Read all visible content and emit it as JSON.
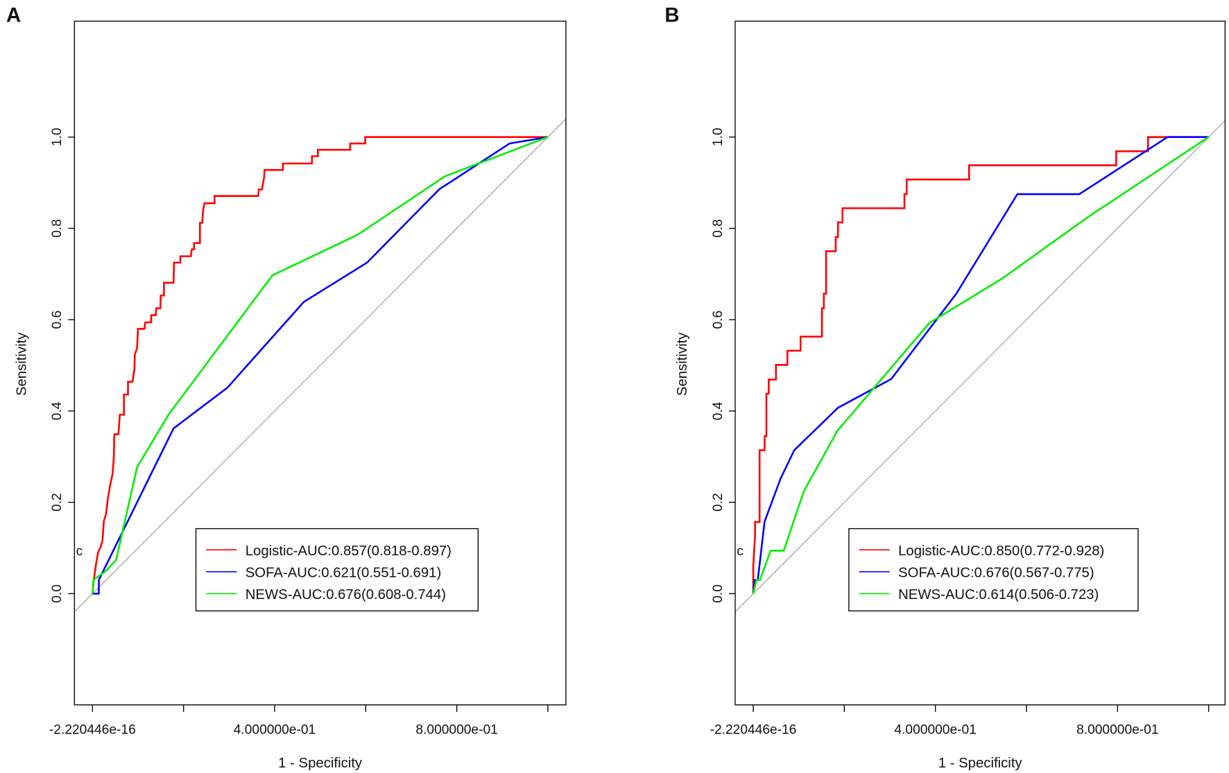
{
  "chart_data": [
    {
      "type": "line",
      "panel_label": "A",
      "title": "",
      "xlabel": "1 - Specificity",
      "ylabel": "Sensitivity",
      "xlim": [
        -0.04,
        1.04
      ],
      "ylim": [
        -0.245,
        1.255
      ],
      "x_ticks": [
        0,
        0.2,
        0.4,
        0.6,
        0.8,
        1.0
      ],
      "x_tick_labels": [
        "-2.220446e-16",
        "4.000000e-01",
        "8.000000e-01"
      ],
      "x_tick_label_values": [
        0,
        0.4,
        0.8
      ],
      "y_ticks": [
        0,
        0.2,
        0.4,
        0.6,
        0.8,
        1.0
      ],
      "y_tick_labels": [
        "0.0",
        "0.2",
        "0.4",
        "0.6",
        "0.8",
        "1.0"
      ],
      "annotation": "c",
      "legend_position": "bottom-right",
      "grid": false,
      "reference_line": "diagonal",
      "series": [
        {
          "name": "Logistic-AUC:0.857(0.818-0.897)",
          "color": "#ff0000",
          "x": [
            0,
            0.003,
            0.007,
            0.012,
            0.017,
            0.022,
            0.025,
            0.03,
            0.033,
            0.038,
            0.044,
            0.047,
            0.048,
            0.057,
            0.06,
            0.069,
            0.069,
            0.078,
            0.078,
            0.088,
            0.092,
            0.093,
            0.098,
            0.1,
            0.114,
            0.116,
            0.129,
            0.129,
            0.139,
            0.14,
            0.149,
            0.15,
            0.157,
            0.157,
            0.178,
            0.179,
            0.193,
            0.193,
            0.216,
            0.218,
            0.223,
            0.223,
            0.236,
            0.236,
            0.241,
            0.243,
            0.246,
            0.268,
            0.268,
            0.364,
            0.365,
            0.372,
            0.377,
            0.378,
            0.418,
            0.418,
            0.482,
            0.482,
            0.495,
            0.495,
            0.566,
            0.566,
            0.599,
            0.599,
            1.0
          ],
          "y": [
            0,
            0.03,
            0.06,
            0.09,
            0.1,
            0.116,
            0.159,
            0.175,
            0.203,
            0.234,
            0.262,
            0.302,
            0.349,
            0.349,
            0.392,
            0.392,
            0.436,
            0.436,
            0.464,
            0.464,
            0.492,
            0.523,
            0.538,
            0.58,
            0.58,
            0.594,
            0.594,
            0.61,
            0.61,
            0.625,
            0.625,
            0.653,
            0.653,
            0.681,
            0.681,
            0.725,
            0.725,
            0.739,
            0.739,
            0.754,
            0.754,
            0.768,
            0.768,
            0.812,
            0.812,
            0.841,
            0.855,
            0.855,
            0.871,
            0.871,
            0.885,
            0.885,
            0.912,
            0.928,
            0.928,
            0.942,
            0.942,
            0.958,
            0.958,
            0.972,
            0.972,
            0.986,
            0.986,
            1.0,
            1.0
          ]
        },
        {
          "name": "SOFA-AUC:0.621(0.551-0.691)",
          "color": "#0000ff",
          "x": [
            0,
            0.014,
            0.014,
            0.178,
            0.296,
            0.464,
            0.603,
            0.762,
            0.916,
            1.0
          ],
          "y": [
            0,
            0,
            0.03,
            0.362,
            0.451,
            0.639,
            0.725,
            0.886,
            0.986,
            1.0
          ]
        },
        {
          "name": "NEWS-AUC:0.676(0.608-0.744)",
          "color": "#00ee00",
          "x": [
            0,
            0.002,
            0.03,
            0.052,
            0.098,
            0.167,
            0.395,
            0.582,
            0.774,
            1.0
          ],
          "y": [
            0,
            0.03,
            0.05,
            0.074,
            0.277,
            0.392,
            0.697,
            0.786,
            0.914,
            1.0
          ]
        }
      ]
    },
    {
      "type": "line",
      "panel_label": "B",
      "title": "",
      "xlabel": "1 - Specificity",
      "ylabel": "Sensitivity",
      "xlim": [
        -0.04,
        1.04
      ],
      "ylim": [
        -0.245,
        1.255
      ],
      "x_ticks": [
        0,
        0.2,
        0.4,
        0.6,
        0.8,
        1.0
      ],
      "x_tick_labels": [
        "-2.220446e-16",
        "4.000000e-01",
        "8.000000e-01"
      ],
      "x_tick_label_values": [
        0,
        0.4,
        0.8
      ],
      "y_ticks": [
        0,
        0.2,
        0.4,
        0.6,
        0.8,
        1.0
      ],
      "y_tick_labels": [
        "0.0",
        "0.2",
        "0.4",
        "0.6",
        "0.8",
        "1.0"
      ],
      "annotation": "c",
      "legend_position": "bottom-right",
      "grid": false,
      "reference_line": "diagonal",
      "series": [
        {
          "name": "Logistic-AUC:0.850(0.772-0.928)",
          "color": "#ff0000",
          "x": [
            0,
            0,
            0.004,
            0.004,
            0.014,
            0.014,
            0.025,
            0.025,
            0.029,
            0.029,
            0.034,
            0.034,
            0.05,
            0.05,
            0.075,
            0.075,
            0.104,
            0.104,
            0.151,
            0.151,
            0.155,
            0.155,
            0.16,
            0.16,
            0.181,
            0.181,
            0.186,
            0.186,
            0.196,
            0.196,
            0.332,
            0.332,
            0.337,
            0.337,
            0.474,
            0.474,
            0.797,
            0.797,
            0.867,
            0.867,
            1.0
          ],
          "y": [
            0,
            0.06,
            0.127,
            0.157,
            0.157,
            0.314,
            0.314,
            0.345,
            0.345,
            0.438,
            0.438,
            0.469,
            0.469,
            0.501,
            0.501,
            0.532,
            0.532,
            0.563,
            0.563,
            0.625,
            0.625,
            0.657,
            0.657,
            0.75,
            0.75,
            0.781,
            0.781,
            0.813,
            0.813,
            0.844,
            0.844,
            0.875,
            0.875,
            0.907,
            0.907,
            0.938,
            0.938,
            0.969,
            0.969,
            1.0,
            1.0
          ]
        },
        {
          "name": "SOFA-AUC:0.676(0.567-0.775)",
          "color": "#0000ff",
          "x": [
            0,
            0.003,
            0.01,
            0.025,
            0.06,
            0.09,
            0.186,
            0.303,
            0.446,
            0.58,
            0.716,
            0.91,
            1.0
          ],
          "y": [
            0,
            0.03,
            0.03,
            0.158,
            0.252,
            0.314,
            0.407,
            0.47,
            0.657,
            0.875,
            0.875,
            1.0,
            1.0
          ]
        },
        {
          "name": "NEWS-AUC:0.614(0.506-0.723)",
          "color": "#00ee00",
          "x": [
            0,
            0.007,
            0.015,
            0.038,
            0.067,
            0.111,
            0.185,
            0.387,
            0.545,
            0.737,
            1.0
          ],
          "y": [
            0,
            0.03,
            0.03,
            0.094,
            0.094,
            0.224,
            0.357,
            0.593,
            0.689,
            0.826,
            1.0
          ]
        }
      ]
    }
  ]
}
